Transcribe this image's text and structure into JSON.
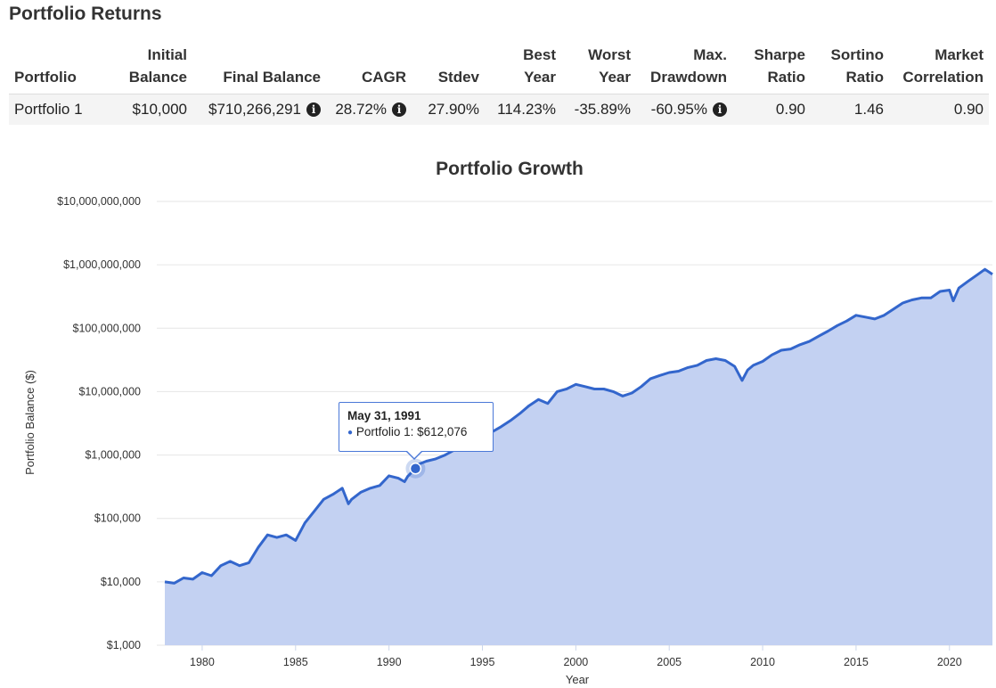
{
  "returns": {
    "title": "Portfolio Returns",
    "headers": [
      [
        "",
        "Portfolio"
      ],
      [
        "Initial",
        "Balance"
      ],
      [
        "",
        "Final Balance"
      ],
      [
        "",
        "CAGR"
      ],
      [
        "",
        "Stdev"
      ],
      [
        "Best",
        "Year"
      ],
      [
        "Worst",
        "Year"
      ],
      [
        "Max.",
        "Drawdown"
      ],
      [
        "Sharpe",
        "Ratio"
      ],
      [
        "Sortino",
        "Ratio"
      ],
      [
        "Market",
        "Correlation"
      ]
    ],
    "row": {
      "portfolio": "Portfolio 1",
      "initial_balance": "$10,000",
      "final_balance": "$710,266,291",
      "cagr": "28.72%",
      "stdev": "27.90%",
      "best_year": "114.23%",
      "worst_year": "-35.89%",
      "max_drawdown": "-60.95%",
      "sharpe": "0.90",
      "sortino": "1.46",
      "market_correlation": "0.90"
    },
    "info_icon": "info-circle-icon",
    "info_glyph": "i"
  },
  "tooltip": {
    "date": "May 31, 1991",
    "series": "Portfolio 1",
    "value": "$612,076"
  },
  "chart_data": {
    "type": "area",
    "title": "Portfolio Growth",
    "xlabel": "Year",
    "ylabel": "Portfolio Balance ($)",
    "y_scale": "log",
    "ylim": [
      1000,
      10000000000
    ],
    "xlim": [
      1978.0,
      2022.3
    ],
    "y_ticks": [
      {
        "value": 1000,
        "label": "$1,000"
      },
      {
        "value": 10000,
        "label": "$10,000"
      },
      {
        "value": 100000,
        "label": "$100,000"
      },
      {
        "value": 1000000,
        "label": "$1,000,000"
      },
      {
        "value": 10000000,
        "label": "$10,000,000"
      },
      {
        "value": 100000000,
        "label": "$100,000,000"
      },
      {
        "value": 1000000000,
        "label": "$1,000,000,000"
      },
      {
        "value": 10000000000,
        "label": "$10,000,000,000"
      }
    ],
    "x_ticks": [
      "1980",
      "1985",
      "1990",
      "1995",
      "2000",
      "2005",
      "2010",
      "2015",
      "2020"
    ],
    "grid": true,
    "colors": {
      "line": "#3366cc",
      "fill": "#c3d1f2",
      "grid": "#e6e6e6"
    },
    "highlight": {
      "x": 1991.42,
      "y": 612076
    },
    "series": [
      {
        "x": [
          1978.0,
          1978.5,
          1979.0,
          1979.5,
          1980.0,
          1980.5,
          1981.0,
          1981.5,
          1982.0,
          1982.5,
          1983.0,
          1983.5,
          1984.0,
          1984.5,
          1985.0,
          1985.5,
          1986.0,
          1986.5,
          1987.0,
          1987.5,
          1987.83,
          1988.0,
          1988.5,
          1989.0,
          1989.5,
          1990.0,
          1990.5,
          1990.83,
          1991.0,
          1991.42,
          1991.5,
          1992.0,
          1992.5,
          1993.0,
          1993.5,
          1994.0,
          1994.5,
          1995.0,
          1995.5,
          1996.0,
          1996.5,
          1997.0,
          1997.5,
          1998.0,
          1998.5,
          1999.0,
          1999.5,
          2000.0,
          2000.5,
          2001.0,
          2001.5,
          2002.0,
          2002.5,
          2003.0,
          2003.5,
          2004.0,
          2004.5,
          2005.0,
          2005.5,
          2006.0,
          2006.5,
          2007.0,
          2007.5,
          2008.0,
          2008.5,
          2008.9,
          2009.2,
          2009.5,
          2010.0,
          2010.5,
          2011.0,
          2011.5,
          2012.0,
          2012.5,
          2013.0,
          2013.5,
          2014.0,
          2014.5,
          2015.0,
          2015.5,
          2016.0,
          2016.5,
          2017.0,
          2017.5,
          2018.0,
          2018.5,
          2019.0,
          2019.5,
          2020.0,
          2020.2,
          2020.5,
          2021.0,
          2021.5,
          2021.9,
          2022.3
        ],
        "y": [
          10000,
          9500,
          11500,
          11000,
          14000,
          12500,
          18000,
          21000,
          18000,
          20000,
          35000,
          55000,
          50000,
          55000,
          45000,
          85000,
          130000,
          200000,
          240000,
          300000,
          170000,
          200000,
          260000,
          300000,
          330000,
          470000,
          430000,
          380000,
          460000,
          612076,
          700000,
          800000,
          870000,
          1000000,
          1200000,
          1500000,
          1500000,
          1800000,
          2300000,
          2800000,
          3500000,
          4500000,
          6000000,
          7500000,
          6500000,
          10000000,
          11000000,
          13000000,
          12000000,
          11000000,
          11000000,
          10000000,
          8500000,
          9500000,
          12000000,
          16000000,
          18000000,
          20000000,
          21000000,
          24000000,
          26000000,
          31000000,
          33000000,
          31000000,
          25000000,
          15000000,
          22000000,
          26000000,
          30000000,
          38000000,
          45000000,
          47000000,
          55000000,
          62000000,
          75000000,
          90000000,
          110000000,
          130000000,
          160000000,
          150000000,
          140000000,
          160000000,
          200000000,
          250000000,
          280000000,
          300000000,
          300000000,
          380000000,
          400000000,
          270000000,
          430000000,
          550000000,
          700000000,
          850000000,
          710000000
        ]
      }
    ]
  }
}
